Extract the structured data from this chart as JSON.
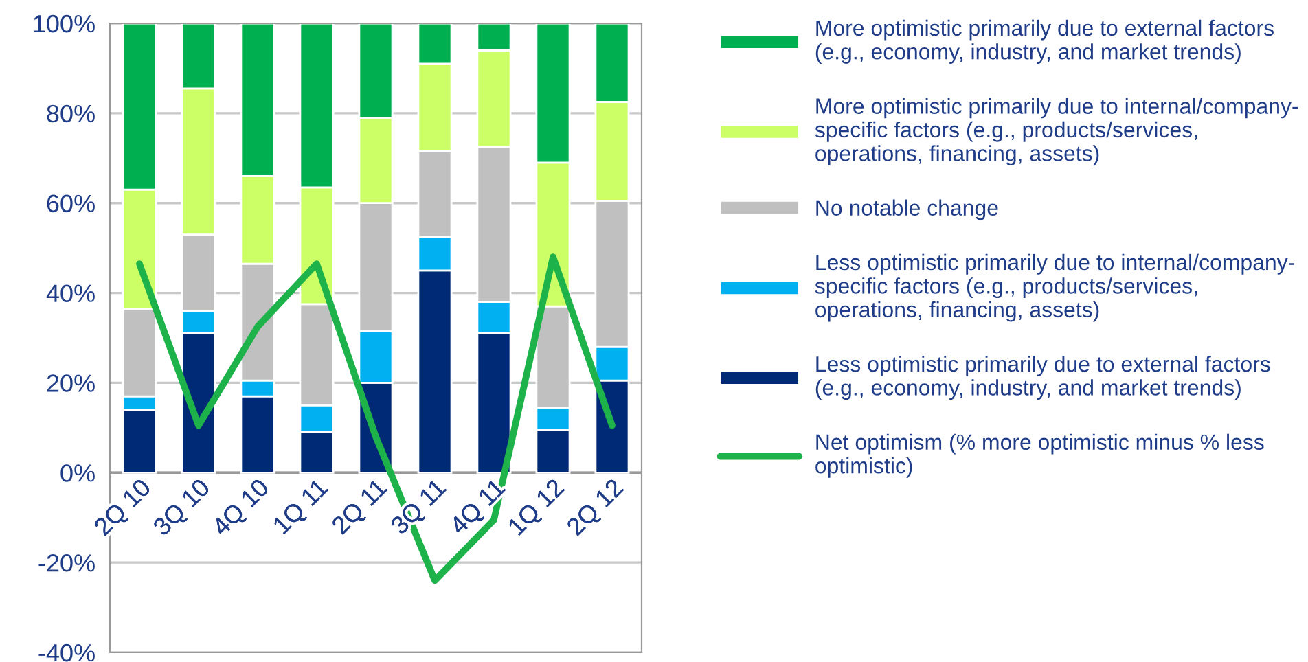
{
  "chart_data": {
    "type": "bar",
    "stacked": true,
    "categories": [
      "2Q 10",
      "3Q 10",
      "4Q 10",
      "1Q 11",
      "2Q 11",
      "3Q 11",
      "4Q 11",
      "1Q 12",
      "2Q 12"
    ],
    "series": [
      {
        "name": "Less optimistic primarily due to external factors\n(e.g., economy, industry, and market trends)",
        "color": "#002a75",
        "values": [
          14,
          31,
          17,
          9,
          20,
          45,
          31,
          9.5,
          20.5
        ]
      },
      {
        "name": "Less optimistic primarily due to internal/company-\nspecific factors (e.g., products/services,\noperations, financing, assets)",
        "color": "#00b0f0",
        "values": [
          3,
          5,
          3.5,
          6,
          11.5,
          7.5,
          7,
          5,
          7.5
        ]
      },
      {
        "name": "No notable change",
        "color": "#c0c0c0",
        "values": [
          19.5,
          17,
          26,
          22.5,
          28.5,
          19,
          34.5,
          22.5,
          32.5
        ]
      },
      {
        "name": "More optimistic primarily due to internal/company-\nspecific factors (e.g., products/services,\noperations, financing, assets)",
        "color": "#ccff66",
        "values": [
          26.5,
          32.5,
          19.5,
          26,
          19,
          19.5,
          21.5,
          32,
          22
        ]
      },
      {
        "name": "More optimistic primarily due to external factors\n(e.g., economy, industry, and market trends)",
        "color": "#00b050",
        "values": [
          37,
          14.5,
          34,
          36.5,
          21,
          9,
          6,
          31,
          17.5
        ]
      },
      {
        "name": "Net optimism (% more optimistic minus % less\noptimistic)",
        "type": "line",
        "color": "#1db34a",
        "values": [
          46.5,
          10.5,
          32.5,
          46.5,
          8,
          -24,
          -10.5,
          48,
          10.5
        ]
      }
    ],
    "ylim": [
      -40,
      100
    ],
    "yticks": [
      {
        "value": -40,
        "label": "-40%"
      },
      {
        "value": -20,
        "label": "-20%"
      },
      {
        "value": 0,
        "label": "0%"
      },
      {
        "value": 20,
        "label": "20%"
      },
      {
        "value": 40,
        "label": "40%"
      },
      {
        "value": 60,
        "label": "60%"
      },
      {
        "value": 80,
        "label": "80%"
      },
      {
        "value": 100,
        "label": "100%"
      }
    ],
    "grid": "y",
    "legend": "right"
  }
}
